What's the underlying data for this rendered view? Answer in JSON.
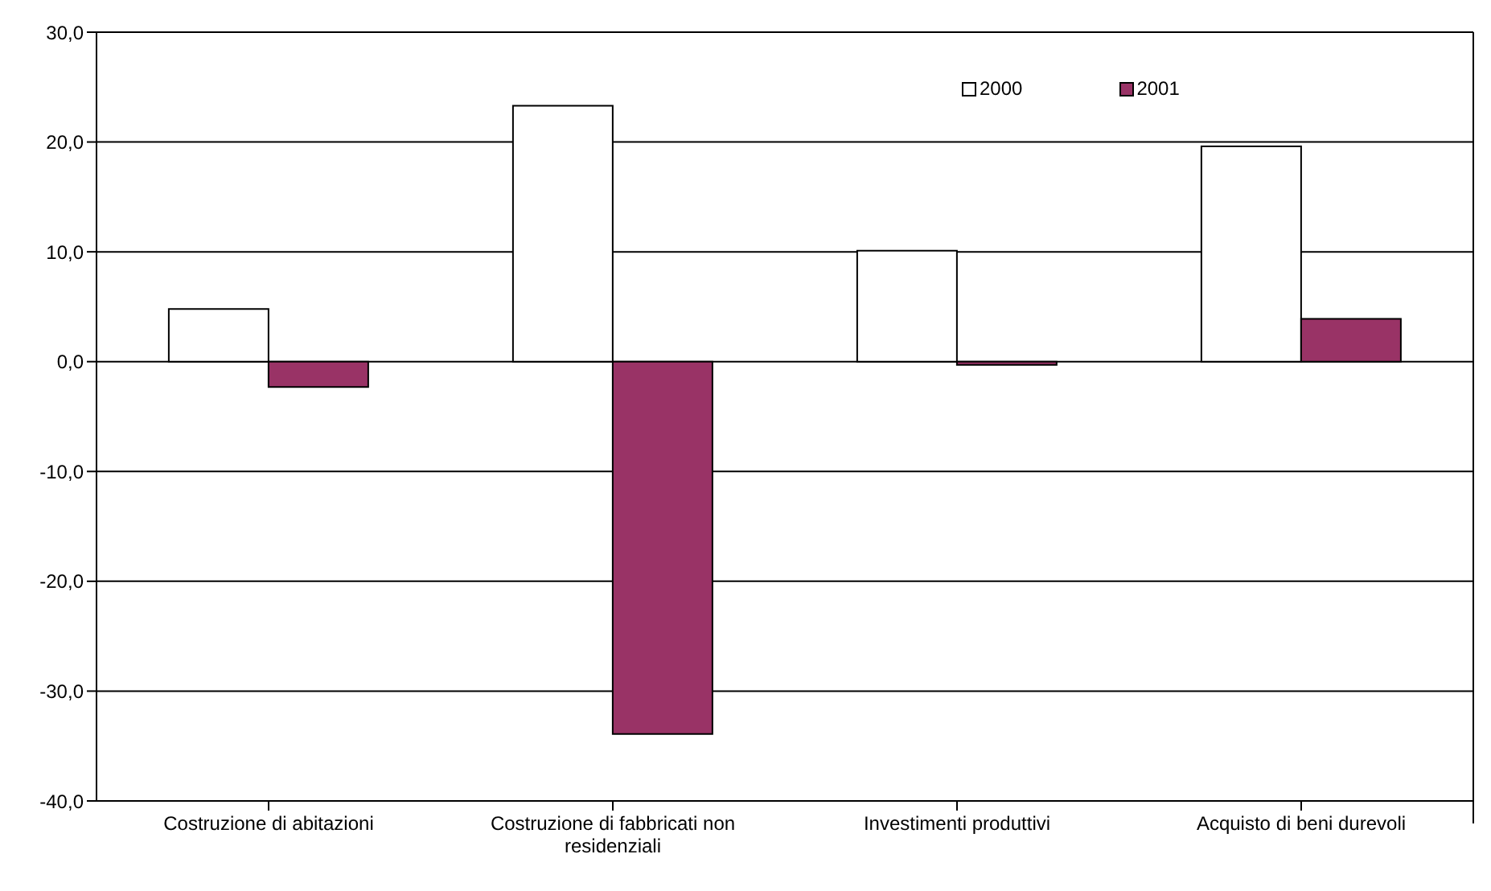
{
  "chart_data": {
    "type": "bar",
    "categories": [
      "Costruzione di abitazioni",
      "Costruzione di fabbricati non residenziali",
      "Investimenti produttivi",
      "Acquisto di beni durevoli"
    ],
    "series": [
      {
        "name": "2000",
        "color": "#ffffff",
        "values": [
          4.8,
          23.3,
          10.1,
          19.6
        ]
      },
      {
        "name": "2001",
        "color": "#993366",
        "values": [
          -2.3,
          -33.9,
          -0.3,
          3.9
        ]
      }
    ],
    "ylim": [
      -40,
      30
    ],
    "yticks": [
      {
        "value": -40,
        "label": "-40,0"
      },
      {
        "value": -30,
        "label": "-30,0"
      },
      {
        "value": -20,
        "label": "-20,0"
      },
      {
        "value": -10,
        "label": "-10,0"
      },
      {
        "value": 0,
        "label": "0,0"
      },
      {
        "value": 10,
        "label": "10,0"
      },
      {
        "value": 20,
        "label": "20,0"
      },
      {
        "value": 30,
        "label": "30,0"
      }
    ],
    "grid": "y",
    "legend": "top right"
  }
}
